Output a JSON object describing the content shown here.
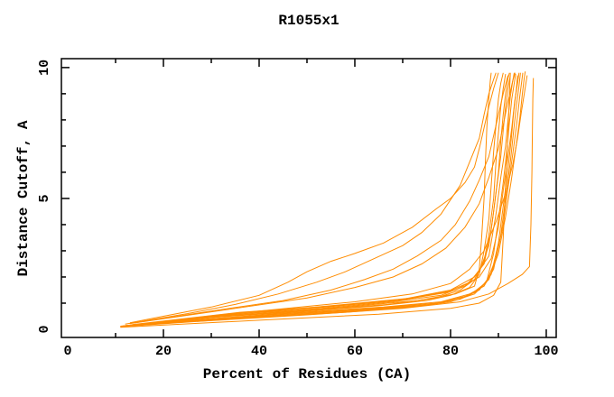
{
  "page": {
    "background": "#ffffff"
  },
  "chart_data": {
    "type": "line",
    "title": "R1055x1",
    "xlabel": "Percent of Residues (CA)",
    "ylabel": "Distance Cutoff, A",
    "grid": false,
    "legend": "none",
    "line_color": "#ff8c00",
    "axis_color": "#000000",
    "x_axis": {
      "min": -1.32,
      "max": 102.08,
      "major_ticks": [
        0,
        20,
        40,
        60,
        80,
        100
      ],
      "minor_ticks": [
        10,
        30,
        50,
        70,
        90
      ]
    },
    "y_axis": {
      "min": -0.31,
      "max": 10.34,
      "major_ticks": [
        0,
        5,
        10
      ],
      "minor_ticks": [
        1,
        2,
        3,
        4,
        6,
        7,
        8,
        9
      ]
    },
    "series": [
      {
        "points": [
          [
            13,
            0.25
          ],
          [
            20,
            0.5
          ],
          [
            30,
            0.85
          ],
          [
            40,
            1.3
          ],
          [
            46,
            1.8
          ],
          [
            50,
            2.2
          ],
          [
            55,
            2.6
          ],
          [
            60,
            2.9
          ],
          [
            66,
            3.3
          ],
          [
            72,
            3.9
          ],
          [
            77,
            4.6
          ],
          [
            80,
            5.0
          ],
          [
            83,
            5.6
          ],
          [
            85,
            6.2
          ],
          [
            86,
            6.9
          ],
          [
            87,
            7.7
          ],
          [
            88,
            8.5
          ],
          [
            89,
            9.2
          ],
          [
            90,
            9.8
          ]
        ]
      },
      {
        "points": [
          [
            12,
            0.2
          ],
          [
            25,
            0.6
          ],
          [
            35,
            0.95
          ],
          [
            44,
            1.35
          ],
          [
            52,
            1.8
          ],
          [
            58,
            2.2
          ],
          [
            64,
            2.7
          ],
          [
            70,
            3.2
          ],
          [
            74,
            3.7
          ],
          [
            78,
            4.4
          ],
          [
            82,
            5.5
          ],
          [
            84,
            6.4
          ],
          [
            86,
            7.3
          ],
          [
            87,
            8.2
          ],
          [
            88,
            9.0
          ],
          [
            89,
            9.55
          ],
          [
            89.5,
            9.8
          ]
        ]
      },
      {
        "points": [
          [
            14,
            0.25
          ],
          [
            30,
            0.7
          ],
          [
            45,
            1.1
          ],
          [
            55,
            1.5
          ],
          [
            62,
            1.9
          ],
          [
            68,
            2.3
          ],
          [
            73,
            2.8
          ],
          [
            78,
            3.4
          ],
          [
            81,
            4.0
          ],
          [
            84,
            4.9
          ],
          [
            86,
            5.7
          ],
          [
            88,
            6.6
          ],
          [
            89,
            7.4
          ],
          [
            90,
            8.2
          ],
          [
            91,
            9.0
          ],
          [
            92,
            9.7
          ]
        ]
      },
      {
        "points": [
          [
            13,
            0.22
          ],
          [
            35,
            0.8
          ],
          [
            50,
            1.2
          ],
          [
            60,
            1.6
          ],
          [
            68,
            2.0
          ],
          [
            74,
            2.5
          ],
          [
            79,
            3.1
          ],
          [
            83,
            3.9
          ],
          [
            86,
            4.8
          ],
          [
            88,
            5.8
          ],
          [
            90,
            6.9
          ],
          [
            91,
            7.8
          ],
          [
            92,
            8.7
          ],
          [
            93,
            9.5
          ],
          [
            93.5,
            9.8
          ]
        ]
      },
      {
        "points": [
          [
            11,
            0.12
          ],
          [
            30,
            0.45
          ],
          [
            50,
            0.7
          ],
          [
            65,
            0.9
          ],
          [
            75,
            1.1
          ],
          [
            80,
            1.3
          ],
          [
            84,
            1.6
          ],
          [
            86,
            2.1
          ],
          [
            87,
            3.0
          ],
          [
            88,
            4.2
          ],
          [
            88.5,
            5.5
          ],
          [
            89,
            6.8
          ],
          [
            89.5,
            7.8
          ],
          [
            90,
            8.8
          ],
          [
            90.5,
            9.4
          ],
          [
            91,
            9.8
          ]
        ]
      },
      {
        "points": [
          [
            12,
            0.14
          ],
          [
            32,
            0.5
          ],
          [
            52,
            0.75
          ],
          [
            67,
            0.95
          ],
          [
            77,
            1.2
          ],
          [
            82,
            1.5
          ],
          [
            85,
            1.9
          ],
          [
            87,
            2.6
          ],
          [
            88,
            3.6
          ],
          [
            89,
            5.0
          ],
          [
            89.5,
            6.4
          ],
          [
            90,
            7.5
          ],
          [
            90.5,
            8.5
          ],
          [
            91,
            9.2
          ],
          [
            91.5,
            9.75
          ]
        ]
      },
      {
        "points": [
          [
            11.5,
            0.13
          ],
          [
            33,
            0.55
          ],
          [
            53,
            0.8
          ],
          [
            68,
            1.05
          ],
          [
            78,
            1.3
          ],
          [
            83,
            1.65
          ],
          [
            86,
            2.2
          ],
          [
            88,
            3.2
          ],
          [
            89,
            4.5
          ],
          [
            90,
            6.0
          ],
          [
            90.5,
            7.2
          ],
          [
            91,
            8.2
          ],
          [
            91.5,
            9.0
          ],
          [
            92,
            9.6
          ],
          [
            92.3,
            9.8
          ]
        ]
      },
      {
        "points": [
          [
            12.5,
            0.15
          ],
          [
            34,
            0.6
          ],
          [
            54,
            0.85
          ],
          [
            69,
            1.1
          ],
          [
            79,
            1.4
          ],
          [
            84,
            1.8
          ],
          [
            87,
            2.5
          ],
          [
            88.5,
            3.8
          ],
          [
            89.5,
            5.2
          ],
          [
            90.5,
            6.6
          ],
          [
            91,
            7.6
          ],
          [
            91.5,
            8.5
          ],
          [
            92,
            9.2
          ],
          [
            92.5,
            9.7
          ]
        ]
      },
      {
        "points": [
          [
            13.5,
            0.18
          ],
          [
            36,
            0.65
          ],
          [
            56,
            0.9
          ],
          [
            70,
            1.15
          ],
          [
            80,
            1.5
          ],
          [
            85,
            2.0
          ],
          [
            88,
            2.8
          ],
          [
            89.5,
            4.4
          ],
          [
            90.5,
            5.8
          ],
          [
            91.5,
            7.0
          ],
          [
            92,
            8.0
          ],
          [
            92.5,
            8.9
          ],
          [
            93,
            9.5
          ],
          [
            93.3,
            9.8
          ]
        ]
      },
      {
        "points": [
          [
            11,
            0.1
          ],
          [
            35,
            0.4
          ],
          [
            58,
            0.65
          ],
          [
            72,
            0.85
          ],
          [
            80,
            1.05
          ],
          [
            85,
            1.35
          ],
          [
            87.5,
            1.8
          ],
          [
            89,
            2.9
          ],
          [
            90,
            4.2
          ],
          [
            91,
            5.6
          ],
          [
            91.8,
            6.9
          ],
          [
            92.3,
            7.9
          ],
          [
            92.8,
            8.8
          ],
          [
            93.3,
            9.4
          ],
          [
            93.6,
            9.75
          ]
        ]
      },
      {
        "points": [
          [
            12,
            0.12
          ],
          [
            38,
            0.45
          ],
          [
            60,
            0.7
          ],
          [
            74,
            0.9
          ],
          [
            82,
            1.15
          ],
          [
            86,
            1.5
          ],
          [
            88.5,
            2.1
          ],
          [
            90,
            3.3
          ],
          [
            91,
            4.7
          ],
          [
            92,
            6.1
          ],
          [
            92.7,
            7.3
          ],
          [
            93.2,
            8.3
          ],
          [
            93.7,
            9.1
          ],
          [
            94,
            9.7
          ]
        ]
      },
      {
        "points": [
          [
            13,
            0.14
          ],
          [
            40,
            0.5
          ],
          [
            62,
            0.75
          ],
          [
            76,
            0.95
          ],
          [
            83,
            1.25
          ],
          [
            87,
            1.65
          ],
          [
            89,
            2.3
          ],
          [
            90.5,
            3.6
          ],
          [
            91.5,
            5.0
          ],
          [
            92.5,
            6.4
          ],
          [
            93.2,
            7.6
          ],
          [
            93.8,
            8.6
          ],
          [
            94.3,
            9.3
          ],
          [
            94.6,
            9.8
          ]
        ]
      },
      {
        "points": [
          [
            14,
            0.17
          ],
          [
            42,
            0.55
          ],
          [
            64,
            0.8
          ],
          [
            77,
            1.0
          ],
          [
            84,
            1.3
          ],
          [
            87.5,
            1.8
          ],
          [
            89.5,
            2.7
          ],
          [
            91,
            4.0
          ],
          [
            92,
            5.4
          ],
          [
            93,
            6.7
          ],
          [
            93.8,
            7.8
          ],
          [
            94.4,
            8.8
          ],
          [
            94.9,
            9.5
          ],
          [
            95.1,
            9.8
          ]
        ]
      },
      {
        "points": [
          [
            15,
            0.2
          ],
          [
            44,
            0.6
          ],
          [
            66,
            0.85
          ],
          [
            78,
            1.05
          ],
          [
            85,
            1.4
          ],
          [
            88,
            1.9
          ],
          [
            90,
            2.9
          ],
          [
            91.5,
            4.3
          ],
          [
            92.7,
            5.7
          ],
          [
            93.7,
            7.0
          ],
          [
            94.5,
            8.1
          ],
          [
            95,
            9.0
          ],
          [
            95.4,
            9.6
          ],
          [
            95.6,
            9.85
          ]
        ]
      },
      {
        "points": [
          [
            11,
            0.08
          ],
          [
            40,
            0.35
          ],
          [
            65,
            0.58
          ],
          [
            80,
            0.8
          ],
          [
            86,
            1.0
          ],
          [
            89,
            1.3
          ],
          [
            90.5,
            1.8
          ],
          [
            91,
            3.5
          ],
          [
            91.5,
            5.5
          ],
          [
            92,
            7.5
          ],
          [
            92.3,
            9.0
          ],
          [
            92.5,
            9.8
          ]
        ]
      },
      {
        "points": [
          [
            27,
            0.3
          ],
          [
            50,
            0.55
          ],
          [
            70,
            0.8
          ],
          [
            82,
            1.05
          ],
          [
            88,
            1.35
          ],
          [
            92,
            1.75
          ],
          [
            95,
            2.1
          ],
          [
            96.5,
            2.4
          ],
          [
            96.8,
            4.0
          ],
          [
            97,
            6.0
          ],
          [
            97.1,
            7.5
          ],
          [
            97.2,
            8.8
          ],
          [
            97.3,
            9.6
          ]
        ]
      },
      {
        "points": [
          [
            20,
            0.3
          ],
          [
            40,
            0.65
          ],
          [
            58,
            0.95
          ],
          [
            72,
            1.2
          ],
          [
            81,
            1.5
          ],
          [
            86,
            2.0
          ],
          [
            88.5,
            2.7
          ],
          [
            90,
            3.9
          ],
          [
            91,
            5.3
          ],
          [
            92,
            6.6
          ],
          [
            92.8,
            7.7
          ],
          [
            93.4,
            8.7
          ],
          [
            94,
            9.4
          ],
          [
            94.3,
            9.8
          ]
        ]
      },
      {
        "points": [
          [
            12,
            0.13
          ],
          [
            36,
            0.55
          ],
          [
            58,
            0.85
          ],
          [
            73,
            1.1
          ],
          [
            81,
            1.35
          ],
          [
            85,
            1.65
          ],
          [
            86,
            2.3
          ],
          [
            86.5,
            3.5
          ],
          [
            87,
            5.0
          ],
          [
            87.3,
            6.5
          ],
          [
            87.6,
            7.8
          ],
          [
            88,
            8.8
          ],
          [
            88.3,
            9.5
          ],
          [
            88.5,
            9.8
          ]
        ]
      },
      {
        "points": [
          [
            14,
            0.18
          ],
          [
            40,
            0.7
          ],
          [
            60,
            1.05
          ],
          [
            72,
            1.35
          ],
          [
            80,
            1.75
          ],
          [
            84,
            2.3
          ],
          [
            87,
            3.0
          ],
          [
            89.5,
            4.1
          ],
          [
            91.5,
            5.2
          ],
          [
            93,
            6.3
          ],
          [
            94,
            7.3
          ],
          [
            94.8,
            8.3
          ],
          [
            95.5,
            9.1
          ],
          [
            96,
            9.7
          ]
        ]
      }
    ]
  }
}
